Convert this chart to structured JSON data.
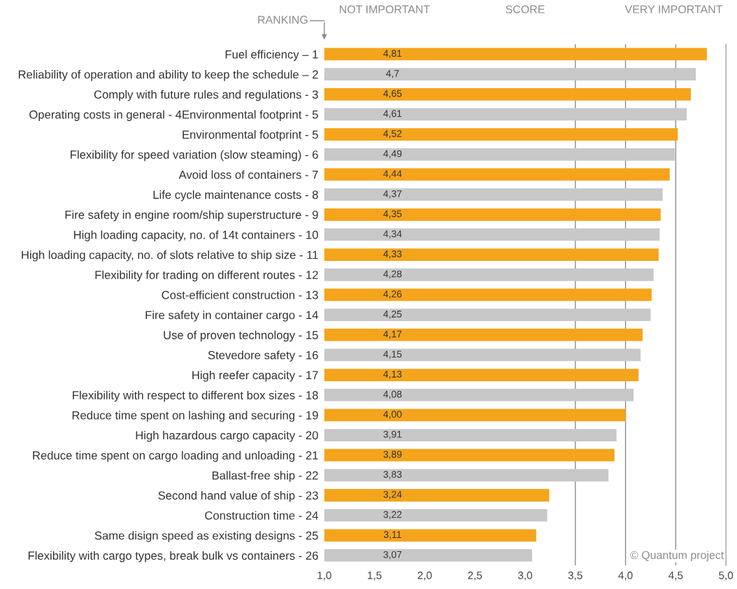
{
  "chart_data": {
    "type": "bar",
    "orientation": "horizontal",
    "categories": [
      "Fuel efficiency – 1",
      "Reliability of operation and ability to keep the schedule – 2",
      "Comply with future rules and regulations - 3",
      "Operating costs in general - 4Environmental footprint - 5",
      "Environmental footprint - 5",
      "Flexibility for speed variation (slow steaming) - 6",
      "Avoid loss of containers - 7",
      "Life cycle maintenance costs - 8",
      "Fire safety in engine room/ship superstructure - 9",
      "High loading capacity, no. of 14t containers - 10",
      "High loading capacity, no. of slots relative to ship size - 11",
      "Flexibility for trading on different routes - 12",
      "Cost-efficient construction - 13",
      "Fire safety in container cargo - 14",
      "Use of proven technology - 15",
      "Stevedore safety - 16",
      "High reefer capacity - 17",
      "Flexibility with respect to different box sizes - 18",
      "Reduce time spent on lashing and securing - 19",
      "High hazardous cargo capacity - 20",
      "Reduce time spent on cargo loading and unloading - 21",
      "Ballast-free ship - 22",
      "Second hand value of ship - 23",
      "Construction time - 24",
      "Same disign speed as existing designs - 25",
      "Flexibility with cargo types, break bulk vs containers - 26"
    ],
    "values": [
      4.81,
      4.7,
      4.65,
      4.61,
      4.52,
      4.49,
      4.44,
      4.37,
      4.35,
      4.34,
      4.33,
      4.28,
      4.26,
      4.25,
      4.17,
      4.15,
      4.13,
      4.08,
      4.0,
      3.91,
      3.89,
      3.83,
      3.24,
      3.22,
      3.11,
      3.07
    ],
    "value_labels": [
      "4,81",
      "4,7",
      "4,65",
      "4,61",
      "4,52",
      "4,49",
      "4,44",
      "4,37",
      "4,35",
      "4,34",
      "4,33",
      "4,28",
      "4,26",
      "4,25",
      "4,17",
      "4,15",
      "4,13",
      "4,08",
      "4,00",
      "3,91",
      "3,89",
      "3,83",
      "3,24",
      "3,22",
      "3,11",
      "3,07"
    ],
    "colors": [
      "#f5a51c",
      "#c8c8c8",
      "#f5a51c",
      "#c8c8c8",
      "#f5a51c",
      "#c8c8c8",
      "#f5a51c",
      "#c8c8c8",
      "#f5a51c",
      "#c8c8c8",
      "#f5a51c",
      "#c8c8c8",
      "#f5a51c",
      "#c8c8c8",
      "#f5a51c",
      "#c8c8c8",
      "#f5a51c",
      "#c8c8c8",
      "#f5a51c",
      "#c8c8c8",
      "#f5a51c",
      "#c8c8c8",
      "#f5a51c",
      "#c8c8c8",
      "#f5a51c",
      "#c8c8c8"
    ],
    "xlim": [
      1.0,
      5.0
    ],
    "xticks": [
      {
        "value": 1.0,
        "label": "1,0"
      },
      {
        "value": 1.5,
        "label": "1,5"
      },
      {
        "value": 2.0,
        "label": "2,0"
      },
      {
        "value": 2.5,
        "label": "2,5"
      },
      {
        "value": 3.0,
        "label": "3,0"
      },
      {
        "value": 3.5,
        "label": "3,5"
      },
      {
        "value": 4.0,
        "label": "4,0"
      },
      {
        "value": 4.5,
        "label": "4,5"
      },
      {
        "value": 5.0,
        "label": "5,0"
      }
    ],
    "ref_lines": [
      {
        "axis": "x",
        "value": 3.5,
        "color": "#8c8c8c"
      },
      {
        "axis": "x",
        "value": 4.0,
        "color": "#8c8c8c"
      },
      {
        "axis": "x",
        "value": 4.5,
        "color": "#8c8c8c"
      }
    ],
    "annotations": [
      "RANKING",
      "NOT IMPORTANT",
      "SCORE",
      "VERY IMPORTANT",
      "© Quantum project"
    ]
  }
}
